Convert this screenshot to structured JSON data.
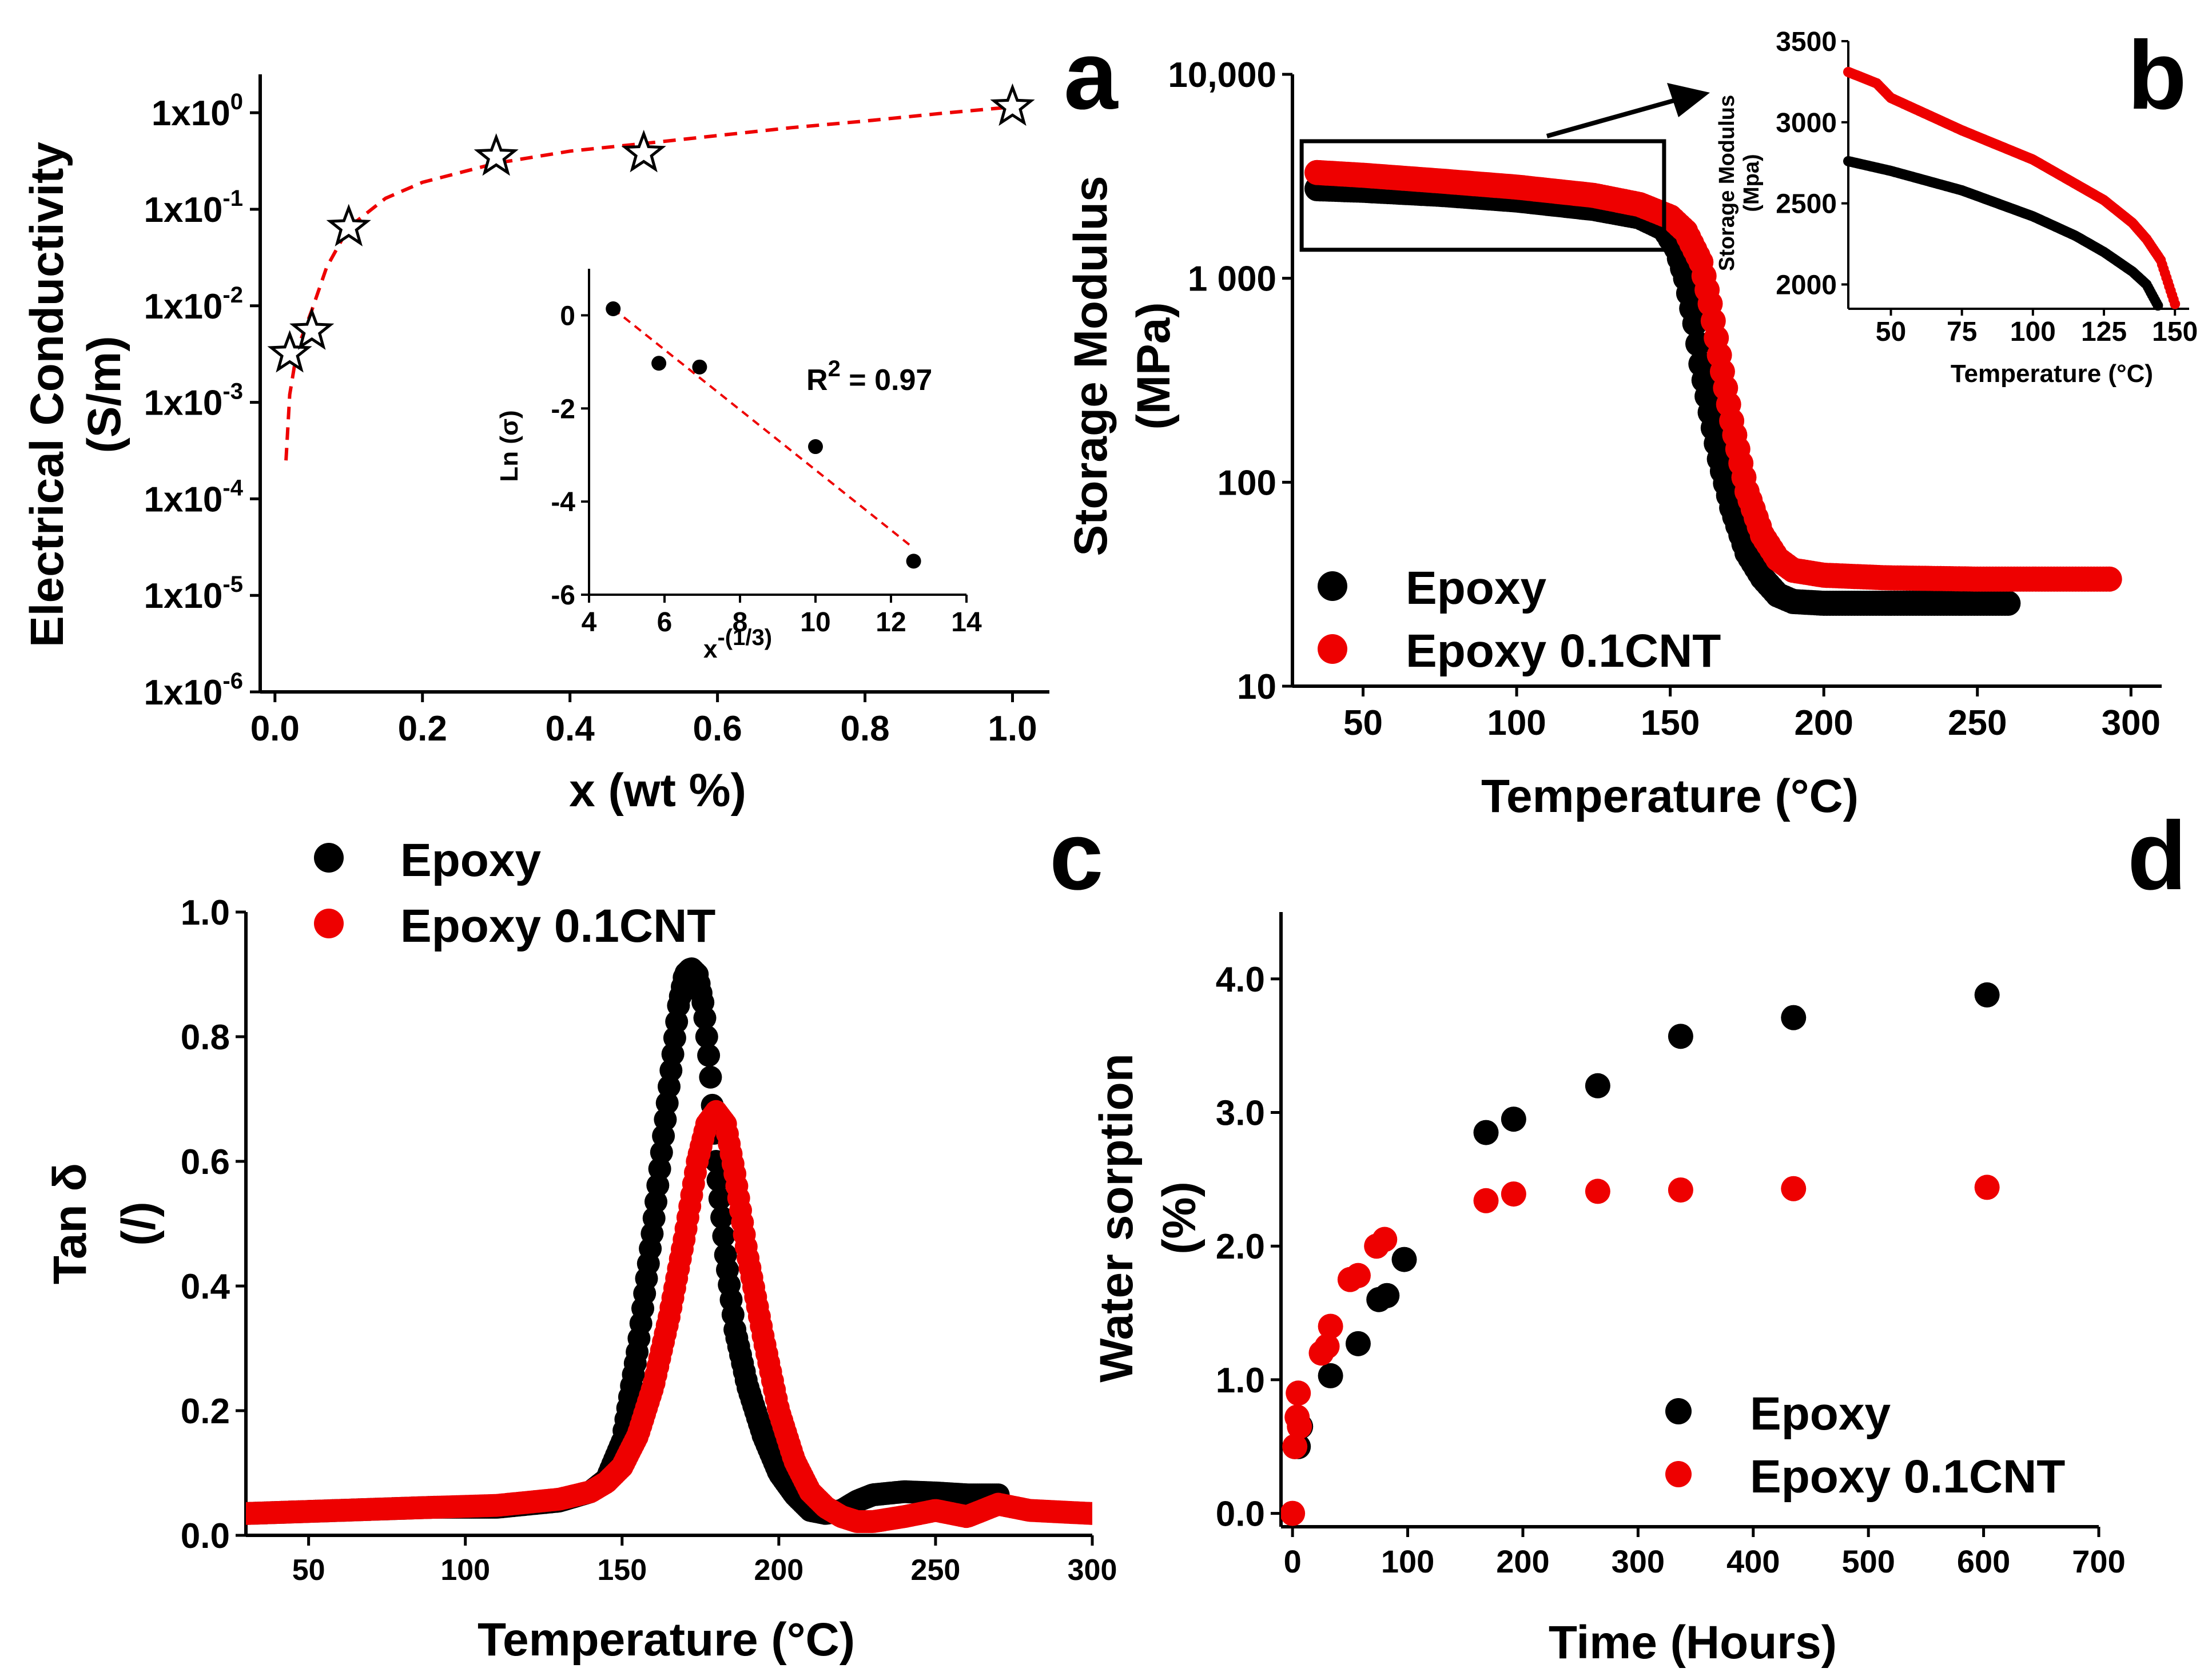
{
  "colors": {
    "epoxy": "#000000",
    "cnt": "#ee0000",
    "fit": "#ee0000"
  },
  "chart_data": [
    {
      "panel": "a",
      "type": "scatter",
      "xlabel": "x (wt %)",
      "ylabel": [
        "Electrical Conductivity",
        "(S/m)"
      ],
      "yscale": "log",
      "xlim": [
        -0.02,
        1.05
      ],
      "ylim": [
        1e-06,
        2.5
      ],
      "xticks": [
        0.0,
        0.2,
        0.4,
        0.6,
        0.8,
        1.0
      ],
      "xtick_labels": [
        "0.0",
        "0.2",
        "0.4",
        "0.6",
        "0.8",
        "1.0"
      ],
      "yticks": [
        {
          "v": 1e-06,
          "base": "1x10",
          "exp": "-6"
        },
        {
          "v": 1e-05,
          "base": "1x10",
          "exp": "-5"
        },
        {
          "v": 0.0001,
          "base": "1x10",
          "exp": "-4"
        },
        {
          "v": 0.001,
          "base": "1x10",
          "exp": "-3"
        },
        {
          "v": 0.01,
          "base": "1x10",
          "exp": "-2"
        },
        {
          "v": 0.1,
          "base": "1x10",
          "exp": "-1"
        },
        {
          "v": 1,
          "base": "1x10",
          "exp": "0"
        }
      ],
      "points": {
        "x": [
          0.02,
          0.05,
          0.1,
          0.3,
          0.5,
          1.0
        ],
        "y": [
          0.0032,
          0.0055,
          0.065,
          0.35,
          0.38,
          1.15
        ]
      },
      "marker": "star",
      "fit_curve": {
        "style": "dashed",
        "x": [
          0.015,
          0.02,
          0.03,
          0.05,
          0.07,
          0.1,
          0.15,
          0.2,
          0.3,
          0.4,
          0.5,
          0.6,
          0.7,
          0.8,
          0.9,
          1.0
        ],
        "y": [
          0.00025,
          0.0012,
          0.0035,
          0.009,
          0.025,
          0.065,
          0.13,
          0.19,
          0.3,
          0.4,
          0.48,
          0.58,
          0.7,
          0.82,
          0.98,
          1.15
        ]
      },
      "inset": {
        "xlabel": "x",
        "xlabel_exp": "-(1/3)",
        "ylabel": "Ln (σ)",
        "xlim": [
          4,
          14
        ],
        "ylim": [
          -6,
          1
        ],
        "xticks": [
          4,
          6,
          8,
          10,
          12,
          14
        ],
        "yticks": [
          0,
          -2,
          -4,
          -6
        ],
        "points": {
          "x": [
            4.64,
            5.85,
            6.93,
            10.0,
            12.6
          ],
          "y": [
            0.14,
            -1.03,
            -1.11,
            -2.82,
            -5.28
          ]
        },
        "fit": {
          "x": [
            4.64,
            12.6
          ],
          "y": [
            0.14,
            -5.0
          ]
        },
        "annotation": {
          "base": "R",
          "exp": "2",
          "rest": " = 0.97"
        }
      }
    },
    {
      "panel": "b",
      "type": "scatter",
      "xlabel": "Temperature (°C)",
      "ylabel": [
        "Storage Modulus",
        "(MPa)"
      ],
      "yscale": "log",
      "xlim": [
        27,
        310
      ],
      "ylim": [
        10,
        10000
      ],
      "xticks": [
        50,
        100,
        150,
        200,
        250,
        300
      ],
      "yticks": [
        10,
        100,
        1000,
        10000
      ],
      "ytick_labels": [
        "10",
        "100",
        "1 000",
        "10,000"
      ],
      "series": [
        {
          "name": "Epoxy",
          "x": [
            35,
            50,
            75,
            100,
            125,
            140,
            148,
            152,
            155,
            158,
            160,
            163,
            166,
            170,
            175,
            180,
            185,
            190,
            200,
            220,
            240,
            260
          ],
          "y": [
            2750,
            2700,
            2580,
            2420,
            2200,
            2000,
            1750,
            1400,
            1000,
            600,
            380,
            220,
            130,
            75,
            45,
            34,
            28,
            26,
            25.5,
            25.5,
            25.5,
            25.5
          ]
        },
        {
          "name": "Epoxy 0.1CNT",
          "x": [
            35,
            50,
            75,
            100,
            125,
            140,
            150,
            155,
            160,
            163,
            166,
            170,
            175,
            180,
            185,
            190,
            200,
            220,
            250,
            280,
            293
          ],
          "y": [
            3300,
            3200,
            3000,
            2800,
            2550,
            2300,
            2000,
            1700,
            1200,
            750,
            420,
            200,
            90,
            55,
            42,
            37,
            35,
            34,
            33.5,
            33.5,
            33.5
          ]
        }
      ],
      "zoom_box": {
        "x": [
          30,
          148
        ],
        "y": [
          1380,
          4700
        ]
      },
      "inset": {
        "xlabel": "Temperature (°C)",
        "ylabel": [
          "Storage Modulus",
          "(Mpa)"
        ],
        "xlim": [
          35,
          155
        ],
        "ylim": [
          1850,
          3500
        ],
        "xticks": [
          50,
          75,
          100,
          125,
          150
        ],
        "yticks": [
          2000,
          2500,
          3000,
          3500
        ],
        "series": [
          {
            "name": "Epoxy",
            "x": [
              35,
              50,
              75,
              100,
              115,
              125,
              135,
              140,
              144
            ],
            "y": [
              2760,
              2700,
              2580,
              2420,
              2300,
              2200,
              2080,
              2000,
              1870
            ]
          },
          {
            "name": "Epoxy 0.1CNT",
            "x": [
              35,
              45,
              50,
              75,
              100,
              125,
              135,
              140,
              145,
              150
            ],
            "y": [
              3310,
              3240,
              3150,
              2950,
              2770,
              2520,
              2380,
              2280,
              2150,
              1880
            ]
          }
        ]
      },
      "legend": [
        "Epoxy",
        "Epoxy 0.1CNT"
      ]
    },
    {
      "panel": "c",
      "type": "scatter",
      "xlabel": "Temperature (°C)",
      "ylabel": [
        "Tan δ",
        "(/)"
      ],
      "xlim": [
        30,
        300
      ],
      "ylim": [
        0,
        1.0
      ],
      "xticks": [
        50,
        100,
        150,
        200,
        250,
        300
      ],
      "yticks": [
        0.0,
        0.2,
        0.4,
        0.6,
        0.8,
        1.0
      ],
      "ytick_labels": [
        "0.0",
        "0.2",
        "0.4",
        "0.6",
        "0.8",
        "1.0"
      ],
      "series": [
        {
          "name": "Epoxy",
          "x": [
            30,
            60,
            90,
            110,
            130,
            140,
            145,
            150,
            155,
            160,
            165,
            168,
            170,
            172,
            174,
            176,
            178,
            180,
            183,
            186,
            190,
            195,
            200,
            205,
            210,
            215,
            220,
            225,
            230,
            240,
            250,
            260,
            270
          ],
          "y": [
            0.035,
            0.04,
            0.045,
            0.045,
            0.055,
            0.07,
            0.09,
            0.15,
            0.3,
            0.5,
            0.72,
            0.85,
            0.9,
            0.91,
            0.9,
            0.85,
            0.75,
            0.6,
            0.45,
            0.33,
            0.24,
            0.16,
            0.1,
            0.065,
            0.04,
            0.035,
            0.04,
            0.055,
            0.065,
            0.07,
            0.068,
            0.065,
            0.065
          ]
        },
        {
          "name": "Epoxy 0.1CNT",
          "x": [
            30,
            60,
            90,
            110,
            130,
            140,
            145,
            150,
            155,
            160,
            165,
            170,
            174,
            177,
            180,
            183,
            186,
            190,
            195,
            200,
            205,
            210,
            215,
            220,
            225,
            230,
            240,
            250,
            260,
            270,
            280,
            300
          ],
          "y": [
            0.035,
            0.04,
            0.045,
            0.048,
            0.058,
            0.07,
            0.085,
            0.11,
            0.16,
            0.24,
            0.35,
            0.48,
            0.6,
            0.66,
            0.68,
            0.66,
            0.58,
            0.45,
            0.32,
            0.2,
            0.12,
            0.07,
            0.045,
            0.03,
            0.022,
            0.022,
            0.03,
            0.04,
            0.03,
            0.05,
            0.04,
            0.035
          ]
        }
      ],
      "legend": [
        "Epoxy",
        "Epoxy 0.1CNT"
      ]
    },
    {
      "panel": "d",
      "type": "scatter",
      "xlabel": "Time (Hours)",
      "ylabel": [
        "Water sorption",
        "(%)"
      ],
      "xlim": [
        -10,
        700
      ],
      "ylim": [
        -0.1,
        4.5
      ],
      "xticks": [
        0,
        100,
        200,
        300,
        400,
        500,
        600,
        700
      ],
      "yticks": [
        0.0,
        1.0,
        2.0,
        3.0,
        4.0
      ],
      "ytick_labels": [
        "0.0",
        "1.0",
        "2.0",
        "3.0",
        "4.0"
      ],
      "series": [
        {
          "name": "Epoxy",
          "x": [
            2,
            5,
            7,
            33,
            57,
            75,
            82,
            97,
            168,
            192,
            265,
            337,
            435,
            603
          ],
          "y": [
            0.5,
            0.5,
            0.65,
            1.03,
            1.27,
            1.6,
            1.63,
            1.9,
            2.85,
            2.95,
            3.2,
            3.57,
            3.71,
            3.88
          ]
        },
        {
          "name": "Epoxy 0.1CNT",
          "x": [
            0,
            2,
            4,
            5,
            6,
            25,
            30,
            33,
            50,
            57,
            73,
            80,
            168,
            192,
            265,
            337,
            435,
            603
          ],
          "y": [
            0.0,
            0.5,
            0.72,
            0.9,
            0.65,
            1.2,
            1.25,
            1.4,
            1.75,
            1.78,
            2.0,
            2.05,
            2.34,
            2.39,
            2.41,
            2.42,
            2.43,
            2.44
          ]
        }
      ],
      "legend": [
        "Epoxy",
        "Epoxy 0.1CNT"
      ]
    }
  ]
}
